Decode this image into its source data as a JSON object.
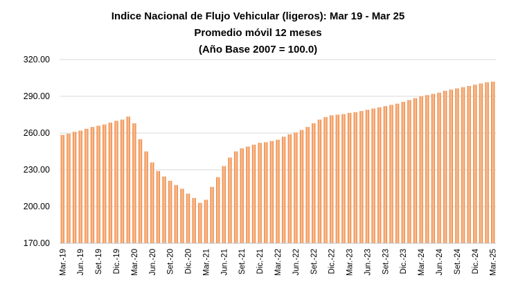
{
  "chart_data": {
    "type": "bar",
    "title": [
      "Indice Nacional de Flujo Vehicular (ligeros): Mar 19 - Mar 25",
      "Promedio móvil 12 meses",
      "(Año Base 2007 = 100.0)"
    ],
    "xlabel": "",
    "ylabel": "",
    "ylim": [
      170,
      320
    ],
    "yticks": [
      "170.00",
      "200.00",
      "230.00",
      "260.00",
      "290.00",
      "320.00"
    ],
    "grid": true,
    "legend": "none",
    "bar_color": "#ED7D31",
    "bar_highlight": "#F8C9A6",
    "grid_color": "#D9D9D9",
    "x_tick_labels": [
      "Mar.-19",
      "Jun.-19",
      "Set.-19",
      "Dic.-19",
      "Mar.-20",
      "Jun.-20",
      "Set.-20",
      "Dic.-20",
      "Mar.-21",
      "Jun.-21",
      "Set.-21",
      "Dic.-21",
      "Mar.-22",
      "Jun.-22",
      "Set.-22",
      "Dic.-22",
      "Mar.-23",
      "Jun.-23",
      "Set.-23",
      "Dic.-23",
      "Mar.-24",
      "Jun.-24",
      "Set.-24",
      "Dic.-24",
      "Mar.-25"
    ],
    "categories": [
      "Mar.-19",
      "Abr.-19",
      "May.-19",
      "Jun.-19",
      "Jul.-19",
      "Ago.-19",
      "Set.-19",
      "Oct.-19",
      "Nov.-19",
      "Dic.-19",
      "Ene.-20",
      "Feb.-20",
      "Mar.-20",
      "Abr.-20",
      "May.-20",
      "Jun.-20",
      "Jul.-20",
      "Ago.-20",
      "Set.-20",
      "Oct.-20",
      "Nov.-20",
      "Dic.-20",
      "Ene.-21",
      "Feb.-21",
      "Mar.-21",
      "Abr.-21",
      "May.-21",
      "Jun.-21",
      "Jul.-21",
      "Ago.-21",
      "Set.-21",
      "Oct.-21",
      "Nov.-21",
      "Dic.-21",
      "Ene.-22",
      "Feb.-22",
      "Mar.-22",
      "Abr.-22",
      "May.-22",
      "Jun.-22",
      "Jul.-22",
      "Ago.-22",
      "Set.-22",
      "Oct.-22",
      "Nov.-22",
      "Dic.-22",
      "Ene.-23",
      "Feb.-23",
      "Mar.-23",
      "Abr.-23",
      "May.-23",
      "Jun.-23",
      "Jul.-23",
      "Ago.-23",
      "Set.-23",
      "Oct.-23",
      "Nov.-23",
      "Dic.-23",
      "Ene.-24",
      "Feb.-24",
      "Mar.-24",
      "Abr.-24",
      "May.-24",
      "Jun.-24",
      "Jul.-24",
      "Ago.-24",
      "Set.-24",
      "Oct.-24",
      "Nov.-24",
      "Dic.-24",
      "Ene.-25",
      "Feb.-25",
      "Mar.-25"
    ],
    "values": [
      258.5,
      259.5,
      261.0,
      262.0,
      263.5,
      265.0,
      266.0,
      267.0,
      268.5,
      270.0,
      271.0,
      273.5,
      268.0,
      255.0,
      245.0,
      236.0,
      229.0,
      224.5,
      221.0,
      217.5,
      214.5,
      210.5,
      207.0,
      203.0,
      205.5,
      216.0,
      224.0,
      233.0,
      240.0,
      245.0,
      247.5,
      249.0,
      250.5,
      252.0,
      252.5,
      253.5,
      254.5,
      257.0,
      259.0,
      260.5,
      262.5,
      265.0,
      268.0,
      271.0,
      273.0,
      274.5,
      275.0,
      275.5,
      276.5,
      277.0,
      278.0,
      279.0,
      280.0,
      281.0,
      282.0,
      283.0,
      284.0,
      285.5,
      287.0,
      288.5,
      290.0,
      291.0,
      292.0,
      293.0,
      294.5,
      295.5,
      296.5,
      297.5,
      298.5,
      299.5,
      300.5,
      301.5,
      302.0
    ]
  }
}
